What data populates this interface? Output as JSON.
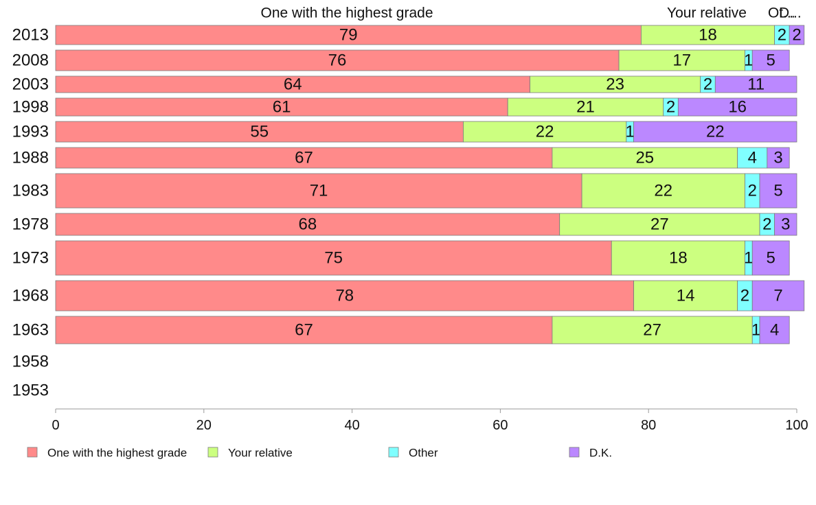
{
  "chart_data": {
    "type": "bar",
    "orientation": "horizontal",
    "stacked": true,
    "categories": [
      "2013",
      "2008",
      "2003",
      "1998",
      "1993",
      "1988",
      "1983",
      "1978",
      "1973",
      "1968",
      "1963",
      "1958",
      "1953"
    ],
    "series": [
      {
        "name": "One with the highest grade",
        "color": "#ff8a8a",
        "values": [
          79,
          76,
          64,
          61,
          55,
          67,
          71,
          68,
          75,
          78,
          67,
          null,
          null
        ]
      },
      {
        "name": "Your relative",
        "color": "#ccff80",
        "values": [
          18,
          17,
          23,
          21,
          22,
          25,
          22,
          27,
          18,
          14,
          27,
          null,
          null
        ]
      },
      {
        "name": "Other",
        "color": "#80ffff",
        "values": [
          2,
          1,
          2,
          2,
          1,
          4,
          2,
          2,
          1,
          2,
          1,
          null,
          null
        ]
      },
      {
        "name": "D.K.",
        "color": "#bb88ff",
        "values": [
          2,
          5,
          11,
          16,
          22,
          3,
          5,
          3,
          5,
          7,
          4,
          null,
          null
        ]
      }
    ],
    "top_labels": [
      "One with the highest grade",
      "Your relative",
      "Ot...",
      "D..."
    ],
    "xlim": [
      0,
      100
    ],
    "xticks": [
      "0",
      "20",
      "40",
      "60",
      "80",
      "100"
    ],
    "grid": false,
    "legend_position": "bottom"
  }
}
